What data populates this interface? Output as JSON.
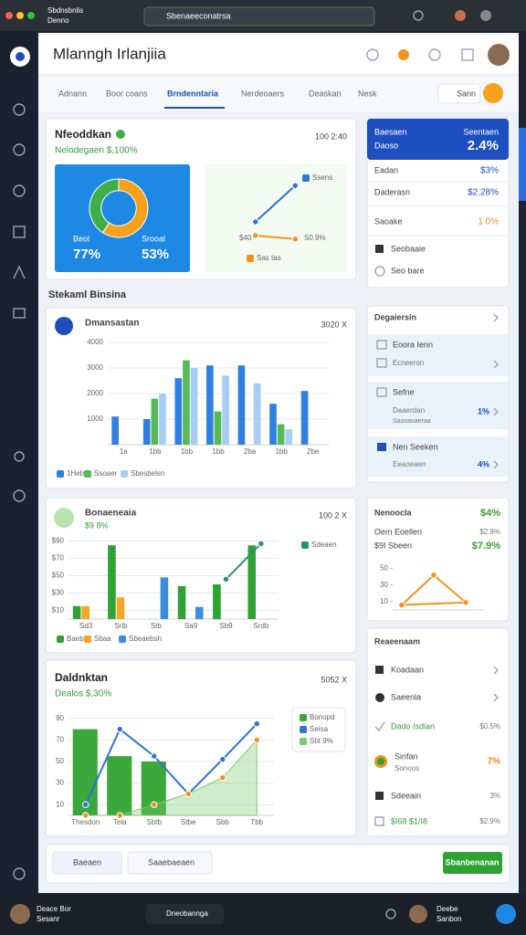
{
  "browser": {
    "tab_title": "Sbdnsbnlis",
    "tab_subtitle": "Denno",
    "url": "Sbenaeeconatrsa"
  },
  "header": {
    "title": "Mlanngh Irlanjiia"
  },
  "tabs": {
    "items": [
      "Adnann",
      "Boor coans",
      "Brndenntaria",
      "Nerdeoaers",
      "Deaskan",
      "Nesk"
    ],
    "active": 2,
    "button": "Sann"
  },
  "section_title": "Stekaml Binsina",
  "chart_data": [
    {
      "type": "pie",
      "title": "Nfeoddkan",
      "subtitle": "Nelodegaen $,100%",
      "time": "100 2:40",
      "categories": [
        "Beol",
        "Srooal"
      ],
      "values": [
        77,
        53
      ],
      "value_labels": [
        "77%",
        "53%"
      ],
      "colors": [
        "#f5a11c",
        "#3fae49"
      ]
    },
    {
      "type": "line",
      "categories": [
        null,
        null
      ],
      "series": [
        {
          "name": "Ssens",
          "color": "#2f73d6",
          "values": [
            36,
            89
          ]
        },
        {
          "name": "Sas tas",
          "color": "#f0931c",
          "values": [
            16,
            11
          ]
        }
      ],
      "ylim": [
        0,
        100
      ],
      "yticks": [],
      "grid": false,
      "annotations": [
        "$40",
        "S0.9%"
      ]
    },
    {
      "type": "bar",
      "title": "Dmansastan",
      "time": "3020 X",
      "categories": [
        "1a",
        "1bb",
        "1bb",
        "1bb",
        "2ba",
        "1bb",
        "2be"
      ],
      "series": [
        {
          "name": "1Heb",
          "color": "#2f80e0",
          "values": [
            1100,
            1000,
            2600,
            3100,
            3100,
            1600,
            2100
          ]
        },
        {
          "name": "Ssoaer",
          "color": "#58b957",
          "values": [
            0,
            1800,
            3300,
            1300,
            0,
            800,
            0
          ]
        },
        {
          "name": "Sbesbelsn",
          "color": "#a8cdf2",
          "values": [
            0,
            2000,
            3000,
            2700,
            2400,
            600,
            0
          ]
        }
      ],
      "ylim": [
        0,
        4000
      ],
      "yticks": [
        1000,
        2000,
        3000,
        4000
      ],
      "grid": true
    },
    {
      "type": "bar",
      "title": "Bonaeneaia",
      "subtitle": "$9 8%",
      "time": "100 2 X",
      "categories": [
        "Sd3",
        "Srlb",
        "Stb",
        "Sa9",
        "Sb9",
        "Srdb"
      ],
      "series": [
        {
          "name": "Baeboa",
          "color": "#2ea334",
          "values": [
            15,
            85,
            0,
            38,
            40,
            85
          ]
        },
        {
          "name": "Sbaa",
          "color": "#f5a623",
          "values": [
            15,
            25,
            0,
            0,
            0,
            0
          ]
        },
        {
          "name": "Sbeaebsh",
          "color": "#3b8fe0",
          "values": [
            0,
            0,
            48,
            14,
            0,
            0
          ]
        },
        {
          "name": "Sdeaen",
          "color": "#2a8f7a",
          "kind": "line",
          "values": [
            null,
            null,
            null,
            null,
            46,
            87
          ]
        }
      ],
      "ylim": [
        0,
        100
      ],
      "yticks": [
        {
          "value": 10,
          "label": "$10"
        },
        {
          "value": 30,
          "label": "$30"
        },
        {
          "value": 50,
          "label": "$50"
        },
        {
          "value": 70,
          "label": "$70"
        },
        {
          "value": 90,
          "label": "$90"
        }
      ],
      "grid": true
    },
    {
      "type": "bar",
      "title": "Daldnktan",
      "subtitle": "Dealos $,30%",
      "time": "5052 X",
      "categories": [
        "Thesdon",
        "Tela",
        "Sbtb",
        "Stbe",
        "Sbb",
        "Tbb"
      ],
      "series": [
        {
          "name": "Bonopd",
          "color": "#3aa83a",
          "values": [
            80,
            55,
            50,
            0,
            0,
            0
          ]
        },
        {
          "name": "Seisa",
          "color": "#2f73d6",
          "kind": "line",
          "values": [
            10,
            80,
            55,
            20,
            52,
            85
          ]
        },
        {
          "name": "Sbt 9%",
          "color": "#7cc96f",
          "kind": "area",
          "values": [
            0,
            0,
            10,
            20,
            35,
            70
          ]
        }
      ],
      "ylim": [
        0,
        100
      ],
      "yticks": [
        10,
        30,
        50,
        70,
        90
      ],
      "grid": true
    },
    {
      "type": "line",
      "x": [
        45,
        10,
        80,
        45
      ],
      "xlim": [
        0,
        100
      ],
      "xticks": [],
      "series": [
        {
          "color": "#f0931c",
          "values": [
            42,
            6,
            9,
            42
          ]
        }
      ],
      "ylim": [
        0,
        55
      ],
      "yticks": [
        10,
        30,
        50
      ],
      "grid": false
    }
  ],
  "summary_panel": {
    "heading": "Baesaen",
    "subheading": "Daoso",
    "metric_label": "Seentaen",
    "metric": "2.4%",
    "rows": [
      [
        "Eadan",
        "$3%"
      ],
      [
        "Daderasn",
        "$2.28%"
      ],
      [
        "Saoake",
        "1 0%"
      ]
    ],
    "links": [
      "Seobaaie",
      "Seo bare"
    ]
  },
  "list_panel": {
    "title": "Degaiersin",
    "items": [
      {
        "title": "Eoora Ienn",
        "subtitle": "Ecneeron"
      },
      {
        "title": "Sefne",
        "subtitle": "Daaerdan",
        "note": "Saonasaeraa",
        "value": "1%"
      },
      {
        "title": "Nen Seeken",
        "subtitle": "Eeaoeaen",
        "value": "4%"
      }
    ]
  },
  "stats_panel": {
    "title": "Nenoocla",
    "value": "$4%",
    "rows": [
      [
        "Oem Eoellen",
        "$2.8%"
      ],
      [
        "$9I Sbeen",
        "$7.9%"
      ]
    ]
  },
  "activity_panel": {
    "title": "Reaeenaam",
    "rows": [
      {
        "label": "Koadaan"
      },
      {
        "label": "Saeenla"
      },
      {
        "label": "Dado Isdian",
        "value": "$0.5%"
      },
      {
        "label": "Sinfan",
        "sub": "Sonoos",
        "value": "7%"
      },
      {
        "label": "Sdeeain",
        "value": "3%"
      },
      {
        "label": "$I68 $1/I8",
        "value": "$2.9%"
      }
    ]
  },
  "footer": {
    "buttons": [
      "Baeaen",
      "Saaebaeaen",
      "Sbanbenanan"
    ]
  },
  "taskbar": {
    "user": "Deace Bor",
    "user_sub": "Sesanr",
    "search": "Dneobannga",
    "user2": "Deebe",
    "user2_sub": "Sanbon"
  }
}
